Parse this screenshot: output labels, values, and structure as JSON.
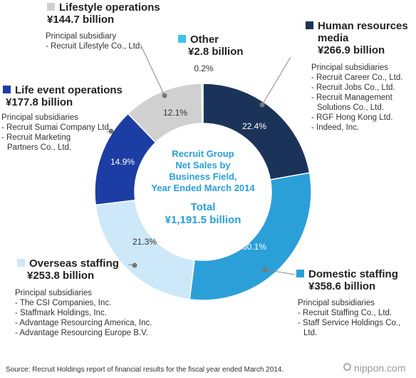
{
  "chart_data": {
    "type": "pie",
    "donut": true,
    "center_title": [
      "Recruit Group",
      "Net Sales by",
      "Business Field,",
      "Year Ended March 2014"
    ],
    "center_total": [
      "Total",
      "¥1,191.5 billion"
    ],
    "slices": [
      {
        "name": "Human resources media",
        "percent": 22.4,
        "percent_label": "22.4%",
        "amount": "¥266.9 billion",
        "color": "#1c3359"
      },
      {
        "name": "Domestic staffing",
        "percent": 30.1,
        "percent_label": "30.1%",
        "amount": "¥358.6 billion",
        "color": "#2a9fd8"
      },
      {
        "name": "Overseas staffing",
        "percent": 21.3,
        "percent_label": "21.3%",
        "amount": "¥253.8 billion",
        "color": "#cde8f8"
      },
      {
        "name": "Life event operations",
        "percent": 14.9,
        "percent_label": "14.9%",
        "amount": "¥177.8 billion",
        "color": "#1c3da3"
      },
      {
        "name": "Lifestyle operations",
        "percent": 12.1,
        "percent_label": "12.1%",
        "amount": "¥144.7 billion",
        "color": "#d0d0d0"
      },
      {
        "name": "Other",
        "percent": 0.2,
        "percent_label": "0.2%",
        "amount": "¥2.8 billion",
        "color": "#3ec1ee"
      }
    ]
  },
  "blocks": {
    "lifestyle": {
      "title": "Lifestyle operations",
      "amount": "¥144.7 billion",
      "sub_head": "Principal subsidiary",
      "items": [
        "- Recruit Lifestyle Co., Ltd."
      ]
    },
    "other": {
      "title": "Other",
      "amount": "¥2.8 billion"
    },
    "hr_media": {
      "title_line1": "Human resources",
      "title_line2": "media",
      "amount": "¥266.9 billion",
      "sub_head": "Principal subsidiaries",
      "items": [
        "- Recruit Career Co., Ltd.",
        "- Recruit Jobs Co., Ltd.",
        "- Recruit Management",
        "Solutions Co., Ltd.",
        "- RGF Hong Kong Ltd.",
        "- Indeed, Inc."
      ]
    },
    "life_event": {
      "title": "Life event operations",
      "amount": "¥177.8 billion",
      "sub_head": "Principal subsidiaries",
      "items": [
        "- Recruit Sumai Company Ltd.",
        "- Recruit Marketing",
        "Partners Co., Ltd."
      ]
    },
    "overseas": {
      "title": "Overseas staffing",
      "amount": "¥253.8 billion",
      "sub_head": "Principal subsidiaries",
      "items": [
        "- The CSI Companies, Inc.",
        "- Staffmark Holdings, Inc.",
        "- Advantage Resourcing America, Inc.",
        "- Advantage Resourcing Europe B.V."
      ]
    },
    "domestic": {
      "title": "Domestic staffing",
      "amount": "¥358.6 billion",
      "sub_head": "Principal subsidiaries",
      "items": [
        "- Recruit Staffing Co., Ltd.",
        "- Staff Service Holdings Co.,",
        "Ltd."
      ]
    }
  },
  "source": "Source: Recruit Holdings report of financial results for the fiscal year ended March 2014.",
  "brand": "nippon.com"
}
